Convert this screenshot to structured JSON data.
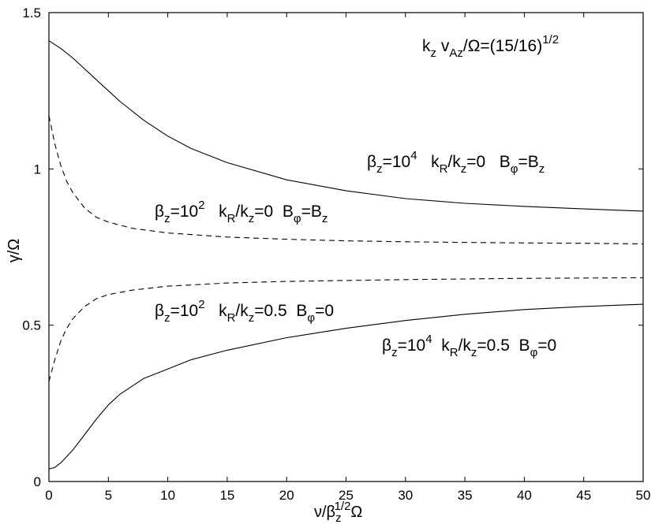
{
  "chart_data": {
    "type": "line",
    "xlabel": {
      "base": "ν/β",
      "sub": "z",
      "sup": "1/2",
      "tail": "Ω"
    },
    "ylabel": "γ/Ω",
    "xlim": [
      0,
      50
    ],
    "ylim": [
      0,
      1.5
    ],
    "xticks": [
      0,
      5,
      10,
      15,
      20,
      25,
      30,
      35,
      40,
      45,
      50
    ],
    "yticks": [
      0,
      0.5,
      1,
      1.5
    ],
    "ytick_labels": [
      "0",
      "0.5",
      "1",
      "1.5"
    ],
    "grid": false,
    "legend": "none",
    "series": [
      {
        "style": "solid",
        "x": [
          0,
          1,
          2,
          3,
          4,
          5,
          6,
          8,
          10,
          12,
          15,
          20,
          25,
          30,
          35,
          40,
          45,
          50
        ],
        "y": [
          1.41,
          1.385,
          1.355,
          1.32,
          1.285,
          1.25,
          1.215,
          1.155,
          1.105,
          1.065,
          1.02,
          0.965,
          0.93,
          0.905,
          0.89,
          0.88,
          0.872,
          0.865
        ]
      },
      {
        "style": "dashed",
        "x": [
          0,
          0.5,
          1,
          1.5,
          2,
          3,
          4,
          5,
          7,
          10,
          15,
          20,
          25,
          30,
          35,
          40,
          45,
          50
        ],
        "y": [
          1.17,
          1.08,
          1.01,
          0.96,
          0.925,
          0.875,
          0.845,
          0.83,
          0.81,
          0.795,
          0.782,
          0.775,
          0.77,
          0.767,
          0.765,
          0.763,
          0.762,
          0.76
        ]
      },
      {
        "style": "dashed",
        "x": [
          0,
          0.5,
          1,
          1.5,
          2,
          3,
          4,
          5,
          7,
          10,
          15,
          20,
          25,
          30,
          35,
          40,
          45,
          50
        ],
        "y": [
          0.32,
          0.39,
          0.45,
          0.49,
          0.52,
          0.56,
          0.585,
          0.598,
          0.612,
          0.625,
          0.635,
          0.64,
          0.643,
          0.646,
          0.648,
          0.65,
          0.651,
          0.652
        ]
      },
      {
        "style": "solid",
        "x": [
          0,
          0.5,
          1,
          2,
          3,
          4,
          5,
          6,
          8,
          10,
          12,
          15,
          20,
          25,
          30,
          35,
          40,
          45,
          50
        ],
        "y": [
          0.04,
          0.045,
          0.06,
          0.1,
          0.15,
          0.2,
          0.245,
          0.28,
          0.33,
          0.36,
          0.39,
          0.42,
          0.46,
          0.49,
          0.515,
          0.535,
          0.55,
          0.56,
          0.567
        ]
      }
    ],
    "annotations": {
      "top_param": {
        "k": "k",
        "k_sub": "z",
        "v": " v",
        "v_sub": "Az",
        "tail": "/Ω=(15/16)",
        "sup": "1/2"
      },
      "curve1": {
        "b": "β",
        "b_sub": "z",
        "eq": "=10",
        "sup": "4",
        "k": "   k",
        "k_sub1": "R",
        "slash": "/k",
        "k_sub2": "z",
        "ratio": "=0   B",
        "b2_sub": "φ",
        "tail": "=B",
        "tail_sub": "z"
      },
      "curve2": {
        "b": "β",
        "b_sub": "z",
        "eq": "=10",
        "sup": "2",
        "k": "   k",
        "k_sub1": "R",
        "slash": "/k",
        "k_sub2": "z",
        "ratio": "=0  B",
        "b2_sub": "φ",
        "tail": "=B",
        "tail_sub": "z"
      },
      "curve3": {
        "b": "β",
        "b_sub": "z",
        "eq": "=10",
        "sup": "2",
        "k": "   k",
        "k_sub1": "R",
        "slash": "/k",
        "k_sub2": "z",
        "ratio": "=0.5  B",
        "b2_sub": "φ",
        "tail": "=0"
      },
      "curve4": {
        "b": "β",
        "b_sub": "z",
        "eq": "=10",
        "sup": "4",
        "k": "  k",
        "k_sub1": "R",
        "slash": "/k",
        "k_sub2": "z",
        "ratio": "=0.5  B",
        "b2_sub": "φ",
        "tail": "=0"
      }
    }
  }
}
